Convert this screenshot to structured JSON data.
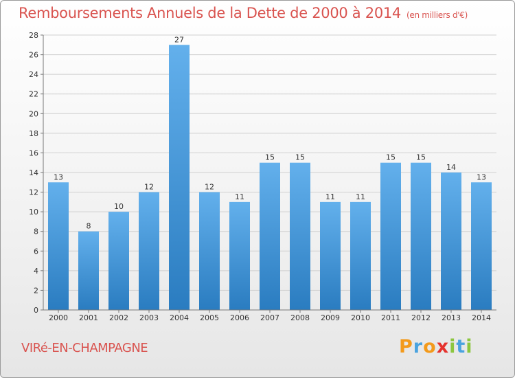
{
  "header": {
    "title": "Remboursements Annuels de la Dette de 2000 à 2014",
    "unit": "(en milliers d'€)"
  },
  "commune": "VIRé-EN-CHAMPAGNE",
  "brand": {
    "letters": [
      "P",
      "r",
      "o",
      "x",
      "i",
      "t",
      "i"
    ],
    "colors": [
      "#f39a1b",
      "#4aa3df",
      "#f39a1b",
      "#e5322d",
      "#8cc63f",
      "#4aa3df",
      "#8cc63f"
    ]
  },
  "colors": {
    "bar_light": "#63b0ec",
    "bar_dark": "#2a7cc0",
    "title": "#d9534f",
    "grid": "#cfcfcf"
  },
  "chart_data": {
    "type": "bar",
    "categories": [
      "2000",
      "2001",
      "2002",
      "2003",
      "2004",
      "2005",
      "2006",
      "2007",
      "2008",
      "2009",
      "2010",
      "2011",
      "2012",
      "2013",
      "2014"
    ],
    "values": [
      13,
      8,
      10,
      12,
      27,
      12,
      11,
      15,
      15,
      11,
      11,
      15,
      15,
      14,
      13
    ],
    "title": "Remboursements Annuels de la Dette de 2000 à 2014",
    "ylim": [
      0,
      28
    ],
    "yticks": [
      0,
      2,
      4,
      6,
      8,
      10,
      12,
      14,
      16,
      18,
      20,
      22,
      24,
      26,
      28
    ],
    "grid": true
  }
}
